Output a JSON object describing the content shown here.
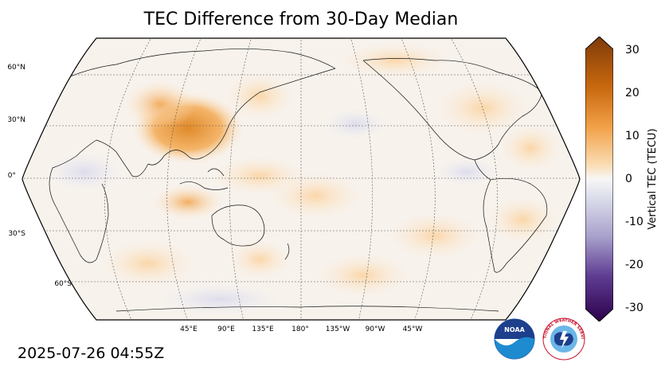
{
  "title": "TEC Difference from 30-Day Median",
  "timestamp": "2025-07-26 04:55Z",
  "map": {
    "projection": "Robinson",
    "lat_labels": [
      "60°N",
      "30°N",
      "0°",
      "30°S",
      "60°S"
    ],
    "lon_labels": [
      "45°E",
      "90°E",
      "135°E",
      "180°",
      "135°W",
      "90°W",
      "45°W"
    ]
  },
  "colorbar": {
    "label": "Vertical TEC (TECU)",
    "ticks": [
      "30",
      "20",
      "10",
      "0",
      "-10",
      "-20",
      "-30"
    ],
    "colors": {
      "max": "#7f3b08",
      "mid": "#f7f7f7",
      "min": "#2d004b"
    }
  },
  "logos": {
    "noaa": "NOAA",
    "nws": "NATIONAL WEATHER SERVICE"
  }
}
